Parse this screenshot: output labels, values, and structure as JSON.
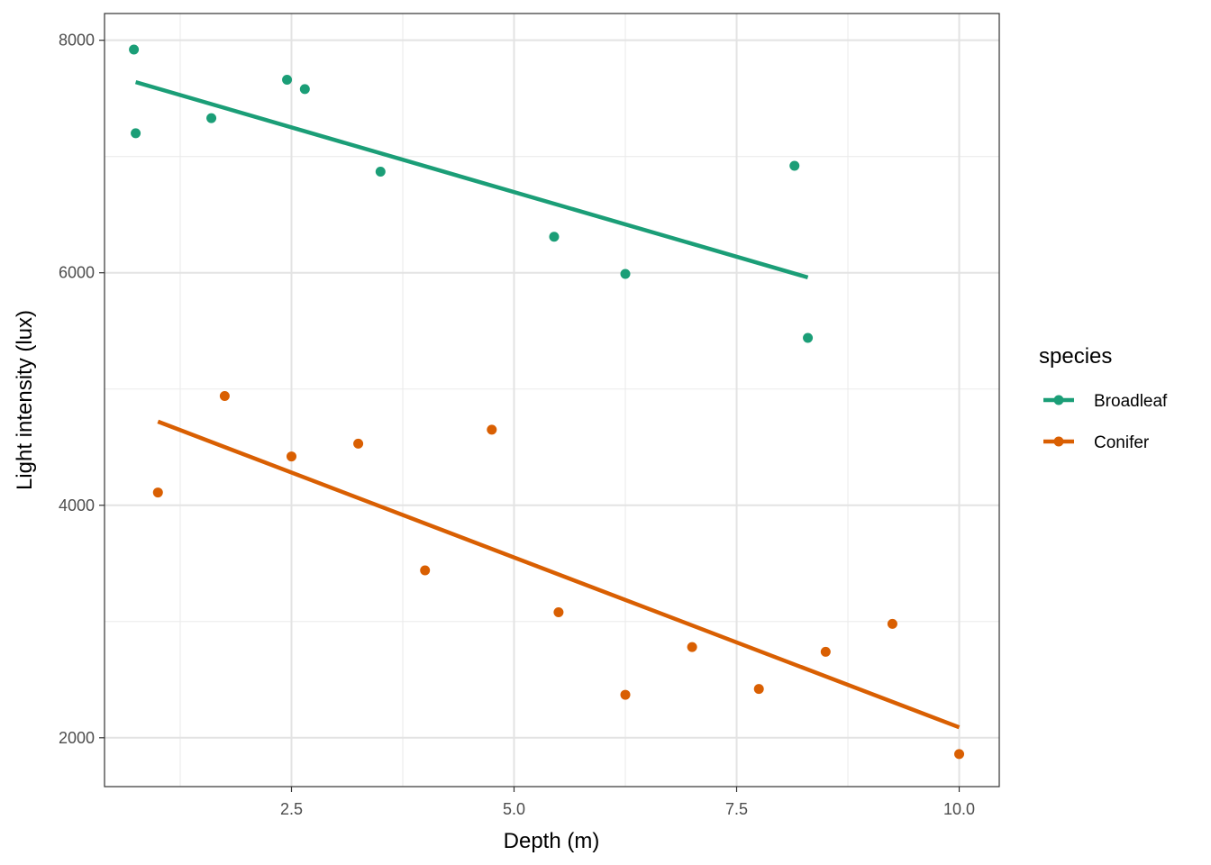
{
  "chart_data": {
    "type": "scatter",
    "title": "",
    "xlabel": "Depth (m)",
    "ylabel": "Light intensity (lux)",
    "xlim": [
      0.4,
      10.45
    ],
    "ylim": [
      1580,
      8230
    ],
    "x_ticks": [
      2.5,
      5.0,
      7.5,
      10.0
    ],
    "x_tick_labels": [
      "2.5",
      "5.0",
      "7.5",
      "10.0"
    ],
    "y_ticks": [
      2000,
      4000,
      6000,
      8000
    ],
    "y_tick_labels": [
      "2000",
      "4000",
      "6000",
      "8000"
    ],
    "grid": true,
    "legend": {
      "title": "species",
      "position": "right"
    },
    "series": [
      {
        "name": "Broadleaf",
        "color": "#1b9e77",
        "points": [
          [
            0.73,
            7920
          ],
          [
            0.75,
            7200
          ],
          [
            1.6,
            7330
          ],
          [
            2.45,
            7660
          ],
          [
            2.65,
            7580
          ],
          [
            3.5,
            6870
          ],
          [
            5.45,
            6310
          ],
          [
            6.25,
            5990
          ],
          [
            8.15,
            6920
          ],
          [
            8.3,
            5440
          ]
        ],
        "fit": [
          [
            0.75,
            7640
          ],
          [
            8.3,
            5960
          ]
        ]
      },
      {
        "name": "Conifer",
        "color": "#d95f02",
        "points": [
          [
            1.0,
            4110
          ],
          [
            1.75,
            4940
          ],
          [
            2.5,
            4420
          ],
          [
            3.25,
            4530
          ],
          [
            4.0,
            3440
          ],
          [
            4.75,
            4650
          ],
          [
            5.5,
            3080
          ],
          [
            6.25,
            2370
          ],
          [
            7.0,
            2780
          ],
          [
            7.75,
            2420
          ],
          [
            8.5,
            2740
          ],
          [
            9.25,
            2980
          ],
          [
            10.0,
            1860
          ]
        ],
        "fit": [
          [
            1.0,
            4720
          ],
          [
            10.0,
            2090
          ]
        ]
      }
    ]
  }
}
